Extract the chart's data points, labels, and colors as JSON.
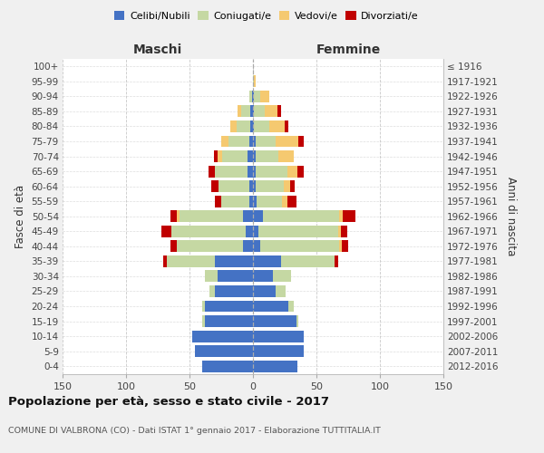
{
  "age_groups": [
    "0-4",
    "5-9",
    "10-14",
    "15-19",
    "20-24",
    "25-29",
    "30-34",
    "35-39",
    "40-44",
    "45-49",
    "50-54",
    "55-59",
    "60-64",
    "65-69",
    "70-74",
    "75-79",
    "80-84",
    "85-89",
    "90-94",
    "95-99",
    "100+"
  ],
  "birth_years": [
    "2012-2016",
    "2007-2011",
    "2002-2006",
    "1997-2001",
    "1992-1996",
    "1987-1991",
    "1982-1986",
    "1977-1981",
    "1972-1976",
    "1967-1971",
    "1962-1966",
    "1957-1961",
    "1952-1956",
    "1947-1951",
    "1942-1946",
    "1937-1941",
    "1932-1936",
    "1927-1931",
    "1922-1926",
    "1917-1921",
    "≤ 1916"
  ],
  "male": {
    "celibi": [
      40,
      46,
      48,
      38,
      38,
      30,
      28,
      30,
      8,
      6,
      8,
      3,
      3,
      4,
      4,
      3,
      2,
      2,
      1,
      0,
      0
    ],
    "coniugati": [
      0,
      0,
      0,
      2,
      2,
      4,
      10,
      38,
      52,
      58,
      50,
      22,
      24,
      26,
      20,
      16,
      11,
      7,
      2,
      0,
      0
    ],
    "vedovi": [
      0,
      0,
      0,
      0,
      0,
      0,
      0,
      0,
      0,
      0,
      2,
      0,
      0,
      0,
      4,
      6,
      5,
      3,
      0,
      0,
      0
    ],
    "divorziati": [
      0,
      0,
      0,
      0,
      0,
      0,
      0,
      3,
      5,
      8,
      5,
      5,
      6,
      5,
      3,
      0,
      0,
      0,
      0,
      0,
      0
    ]
  },
  "female": {
    "nubili": [
      35,
      40,
      40,
      34,
      28,
      18,
      16,
      22,
      6,
      4,
      8,
      3,
      2,
      2,
      2,
      2,
      1,
      1,
      1,
      0,
      0
    ],
    "coniugate": [
      0,
      0,
      0,
      2,
      4,
      8,
      14,
      42,
      62,
      63,
      60,
      20,
      22,
      25,
      18,
      16,
      12,
      8,
      5,
      1,
      0
    ],
    "vedove": [
      0,
      0,
      0,
      0,
      0,
      0,
      0,
      0,
      2,
      2,
      3,
      4,
      5,
      8,
      12,
      18,
      12,
      10,
      7,
      1,
      0
    ],
    "divorziate": [
      0,
      0,
      0,
      0,
      0,
      0,
      0,
      3,
      5,
      5,
      10,
      7,
      4,
      5,
      0,
      4,
      3,
      3,
      0,
      0,
      0
    ]
  },
  "colors": {
    "celibi_nubili": "#4472C4",
    "coniugati": "#C5D8A3",
    "vedovi": "#F5C970",
    "divorziati": "#C00000"
  },
  "xlim": 150,
  "title": "Popolazione per età, sesso e stato civile - 2017",
  "subtitle": "COMUNE DI VALBRONA (CO) - Dati ISTAT 1° gennaio 2017 - Elaborazione TUTTITALIA.IT",
  "ylabel_left": "Fasce di età",
  "ylabel_right": "Anni di nascita",
  "xlabel_maschi": "Maschi",
  "xlabel_femmine": "Femmine",
  "bg_color": "#f0f0f0",
  "plot_bg": "#ffffff"
}
